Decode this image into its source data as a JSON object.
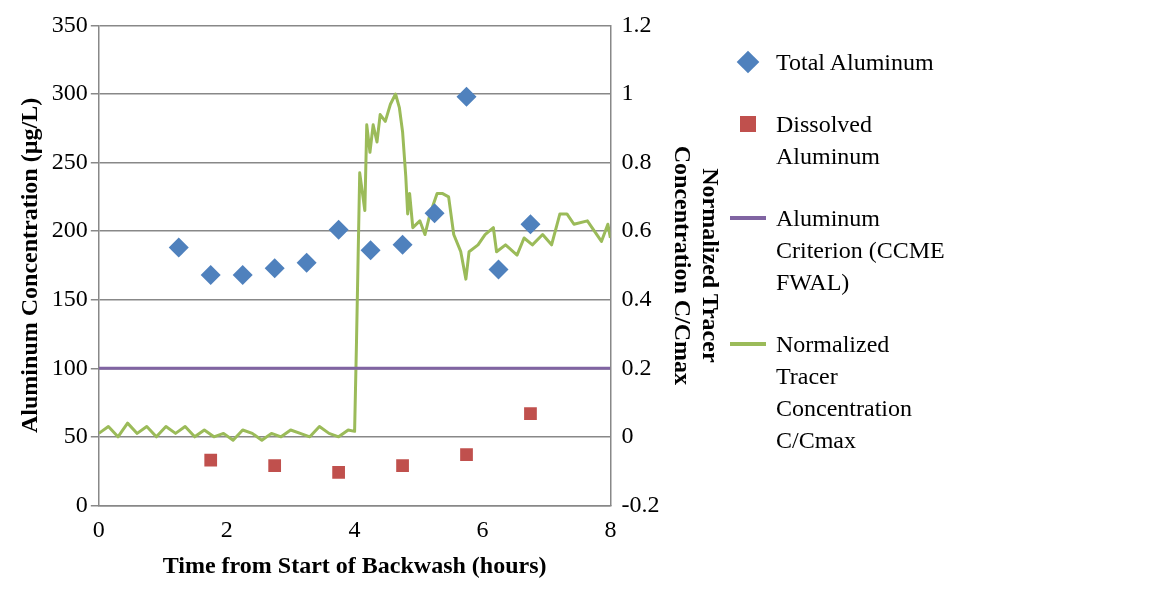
{
  "chart_data": {
    "type": "scatter",
    "xlabel": "Time from Start of Backwash (hours)",
    "ylabel": "Aluminum Concentration (µg/L)",
    "y2label": "Normalized Tracer Concentration C/Cmax",
    "xlim": [
      0,
      8
    ],
    "xticks": [
      0,
      2,
      4,
      6,
      8
    ],
    "ylim": [
      0,
      350
    ],
    "yticks": [
      0,
      50,
      100,
      150,
      200,
      250,
      300,
      350
    ],
    "y2lim": [
      -0.2,
      1.2
    ],
    "y2ticks": [
      -0.2,
      0,
      0.2,
      0.4,
      0.6,
      0.8,
      1,
      1.2
    ],
    "grid": "y",
    "legend": "right",
    "series": [
      {
        "name": "Total Aluminum",
        "type": "scatter",
        "marker": "diamond",
        "color": "#4f81bd",
        "x": [
          1.25,
          1.75,
          2.25,
          2.75,
          3.25,
          3.75,
          4.25,
          4.75,
          5.25,
          5.75,
          6.25,
          6.75
        ],
        "values": [
          188,
          168,
          168,
          173,
          177,
          201,
          186,
          190,
          213,
          298,
          172,
          205
        ]
      },
      {
        "name": "Dissolved Aluminum",
        "type": "scatter",
        "marker": "square",
        "color": "#c0504d",
        "x": [
          1.75,
          2.75,
          3.75,
          4.75,
          5.75,
          6.75
        ],
        "values": [
          33,
          29,
          24,
          29,
          37,
          67
        ]
      },
      {
        "name": "Aluminum Criterion (CCME FWAL)",
        "type": "line",
        "marker": "none",
        "color": "#8064a2",
        "x": [
          0,
          8
        ],
        "values": [
          100,
          100
        ]
      },
      {
        "name": "Normalized Tracer Concentration C/Cmax",
        "type": "line",
        "marker": "none",
        "axis": "y2",
        "color": "#9bbb59",
        "x": [
          0,
          0.15,
          0.3,
          0.45,
          0.6,
          0.75,
          0.9,
          1.05,
          1.2,
          1.35,
          1.5,
          1.65,
          1.8,
          1.95,
          2.1,
          2.25,
          2.4,
          2.55,
          2.7,
          2.85,
          3.0,
          3.15,
          3.3,
          3.45,
          3.6,
          3.75,
          3.9,
          4.0,
          4.03,
          4.08,
          4.16,
          4.19,
          4.24,
          4.29,
          4.35,
          4.4,
          4.48,
          4.56,
          4.64,
          4.7,
          4.75,
          4.8,
          4.83,
          4.86,
          4.91,
          5.02,
          5.1,
          5.18,
          5.29,
          5.37,
          5.47,
          5.55,
          5.66,
          5.74,
          5.79,
          5.93,
          6.04,
          6.17,
          6.22,
          6.36,
          6.54,
          6.65,
          6.78,
          6.94,
          7.08,
          7.21,
          7.32,
          7.43,
          7.64,
          7.86,
          7.96,
          8.0
        ],
        "values": [
          0.01,
          0.03,
          0.0,
          0.04,
          0.01,
          0.03,
          0.0,
          0.03,
          0.01,
          0.03,
          0.0,
          0.02,
          0.0,
          0.01,
          -0.01,
          0.02,
          0.01,
          -0.01,
          0.01,
          0.0,
          0.02,
          0.01,
          0.0,
          0.03,
          0.01,
          0.0,
          0.02,
          0.016,
          0.28,
          0.77,
          0.66,
          0.91,
          0.83,
          0.91,
          0.86,
          0.94,
          0.92,
          0.97,
          1.0,
          0.96,
          0.89,
          0.76,
          0.65,
          0.71,
          0.61,
          0.63,
          0.59,
          0.65,
          0.71,
          0.71,
          0.7,
          0.59,
          0.54,
          0.46,
          0.54,
          0.56,
          0.59,
          0.61,
          0.54,
          0.56,
          0.53,
          0.58,
          0.56,
          0.59,
          0.56,
          0.65,
          0.65,
          0.62,
          0.63,
          0.57,
          0.62,
          0.58
        ]
      }
    ]
  }
}
